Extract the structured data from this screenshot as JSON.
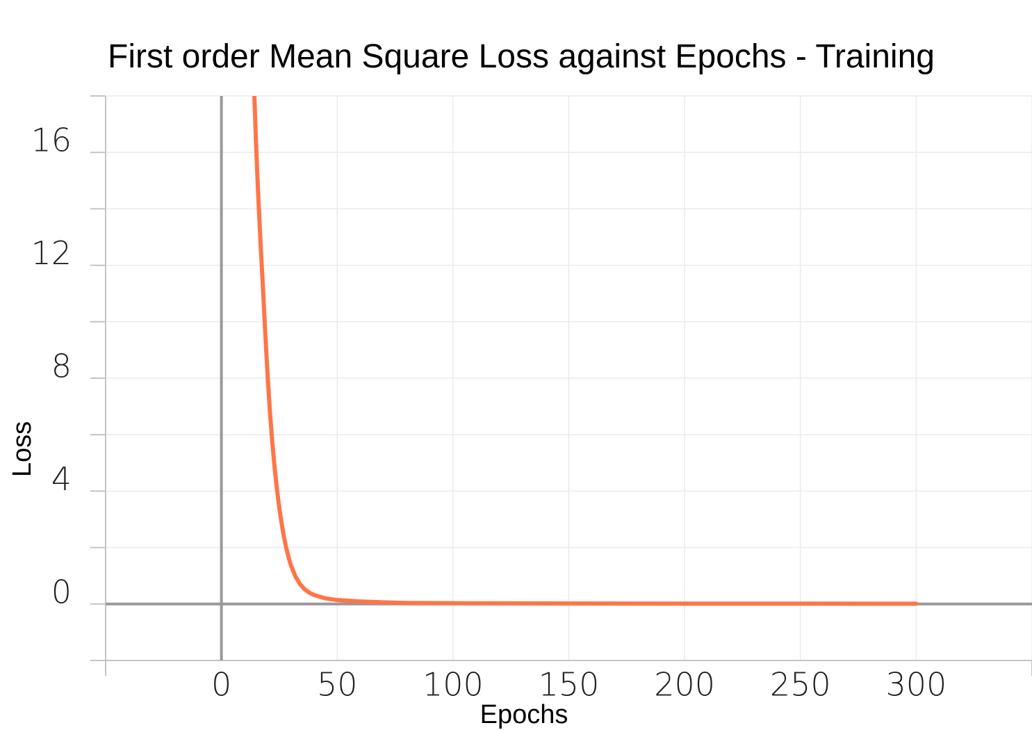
{
  "chart_data": {
    "type": "line",
    "title": "First order Mean Square Loss against Epochs - Training",
    "xlabel": "Epochs",
    "ylabel": "Loss",
    "xlim": [
      -50,
      350
    ],
    "ylim": [
      -2,
      18
    ],
    "x_ticks": [
      0,
      50,
      100,
      150,
      200,
      250,
      300
    ],
    "x_tick_labels": [
      "0",
      "50",
      "100",
      "150",
      "200",
      "250",
      "300"
    ],
    "y_ticks": [
      0,
      4,
      8,
      12,
      16
    ],
    "y_tick_labels": [
      "0",
      "4",
      "8",
      "12",
      "16"
    ],
    "grid": true,
    "series": [
      {
        "color": "#ff7547",
        "x": [
          14,
          15,
          16,
          17,
          18,
          19,
          20,
          21,
          22,
          23,
          24,
          25,
          26,
          27,
          28,
          29,
          30,
          32,
          34,
          36,
          38,
          40,
          45,
          50,
          60,
          70,
          80,
          100,
          150,
          200,
          250,
          300
        ],
        "y": [
          18.5,
          16.2,
          14.3,
          12.6,
          11.1,
          9.5,
          8.0,
          6.75,
          5.7,
          4.8,
          4.05,
          3.4,
          2.85,
          2.38,
          1.98,
          1.65,
          1.37,
          0.97,
          0.7,
          0.52,
          0.4,
          0.32,
          0.2,
          0.14,
          0.09,
          0.06,
          0.04,
          0.03,
          0.02,
          0.015,
          0.012,
          0.01
        ]
      }
    ]
  }
}
